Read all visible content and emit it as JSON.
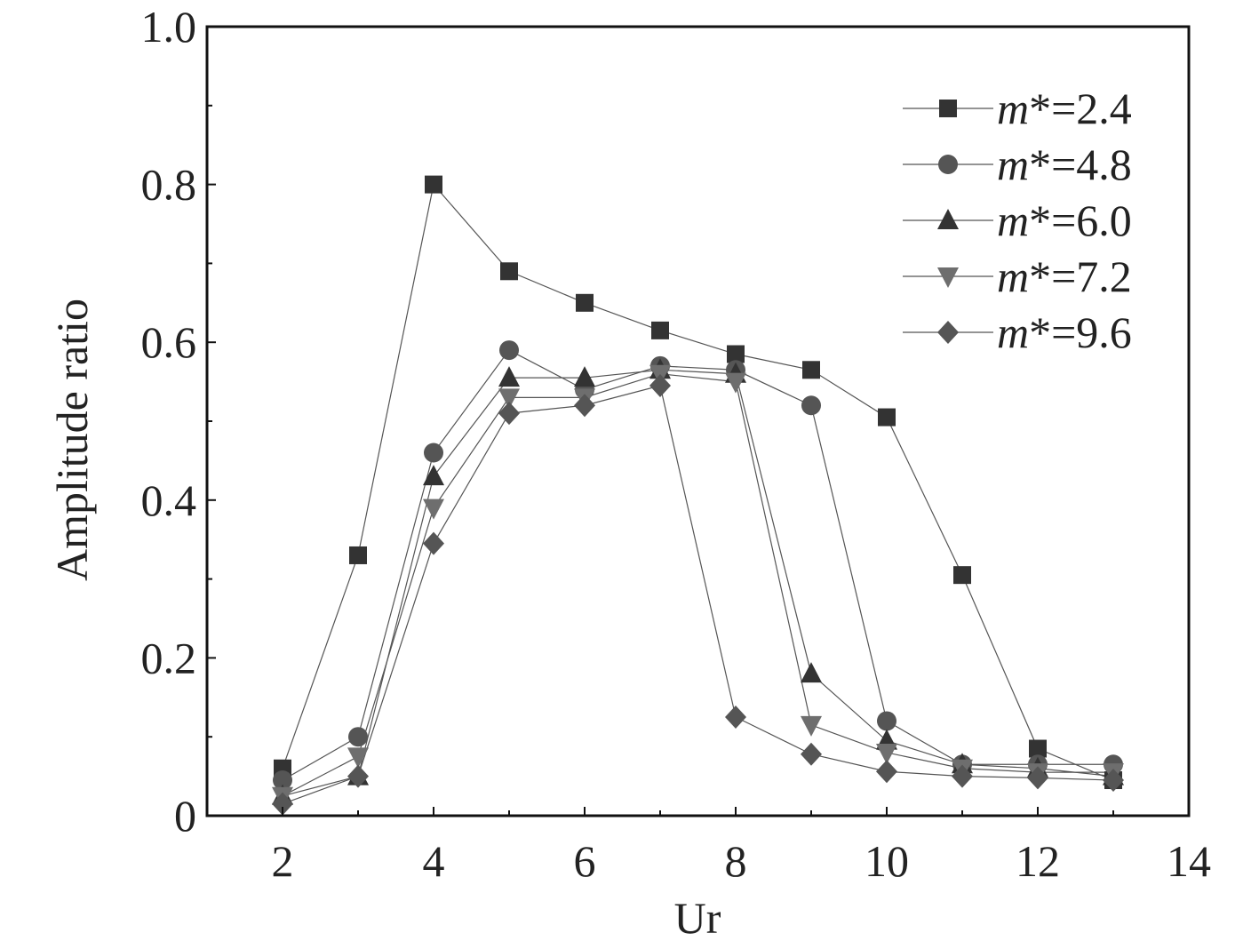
{
  "chart_data": {
    "type": "line",
    "xlabel": "Ur",
    "ylabel": "Amplitude ratio",
    "xlim": [
      1,
      14
    ],
    "ylim": [
      0,
      1.0
    ],
    "xticks": [
      2,
      4,
      6,
      8,
      10,
      12,
      14
    ],
    "yticks": [
      0,
      0.2,
      0.4,
      0.6,
      0.8,
      1.0
    ],
    "xtick_labels": [
      "2",
      "4",
      "6",
      "8",
      "10",
      "12",
      "14"
    ],
    "ytick_labels": [
      "0",
      "0.2",
      "0.4",
      "0.6",
      "0.8",
      "1.0"
    ],
    "grid": false,
    "legend_position": "top-right",
    "legend_prefix": "m",
    "x": [
      2,
      3,
      4,
      5,
      6,
      7,
      8,
      9,
      10,
      11,
      12,
      13
    ],
    "series": [
      {
        "name": "m*=2.4",
        "legend_suffix": "*=2.4",
        "marker": "square",
        "color": "#333333",
        "values": [
          0.06,
          0.33,
          0.8,
          0.69,
          0.65,
          0.615,
          0.585,
          0.565,
          0.505,
          0.305,
          0.085,
          0.045
        ]
      },
      {
        "name": "m*=4.8",
        "legend_suffix": "*=4.8",
        "marker": "circle",
        "color": "#555555",
        "values": [
          0.045,
          0.1,
          0.46,
          0.59,
          0.54,
          0.57,
          0.565,
          0.52,
          0.12,
          0.065,
          0.065,
          0.065
        ]
      },
      {
        "name": "m*=6.0",
        "legend_suffix": "*=6.0",
        "marker": "triangle-up",
        "color": "#333333",
        "values": [
          0.025,
          0.05,
          0.43,
          0.555,
          0.555,
          0.565,
          0.56,
          0.18,
          0.095,
          0.065,
          0.06,
          0.05
        ]
      },
      {
        "name": "m*=7.2",
        "legend_suffix": "*=7.2",
        "marker": "triangle-down",
        "color": "#6e6e6e",
        "values": [
          0.025,
          0.075,
          0.39,
          0.53,
          0.53,
          0.56,
          0.55,
          0.115,
          0.08,
          0.06,
          0.055,
          0.055
        ]
      },
      {
        "name": "m*=9.6",
        "legend_suffix": "*=9.6",
        "marker": "diamond",
        "color": "#555555",
        "values": [
          0.015,
          0.05,
          0.345,
          0.51,
          0.52,
          0.545,
          0.125,
          0.078,
          0.056,
          0.05,
          0.048,
          0.045
        ]
      }
    ]
  }
}
